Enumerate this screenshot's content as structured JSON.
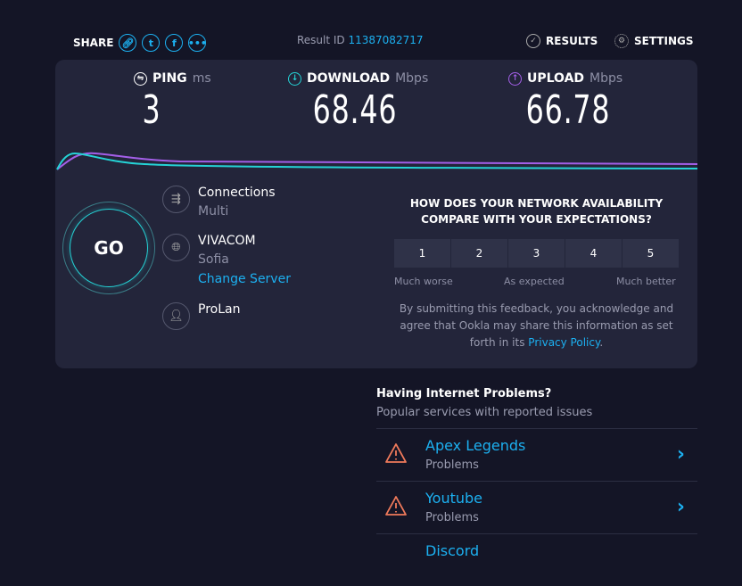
{
  "header": {
    "share_label": "SHARE",
    "share_icons": [
      "link-icon",
      "twitter-icon",
      "facebook-icon",
      "more-icon"
    ],
    "result_id_label": "Result ID",
    "result_id": "11387082717",
    "results_label": "RESULTS",
    "settings_label": "SETTINGS"
  },
  "metrics": {
    "ping": {
      "label": "PING",
      "unit": "ms",
      "value": "3"
    },
    "download": {
      "label": "DOWNLOAD",
      "unit": "Mbps",
      "value": "68.46"
    },
    "upload": {
      "label": "UPLOAD",
      "unit": "Mbps",
      "value": "66.78"
    }
  },
  "colors": {
    "accent": "#1cb0f0",
    "download": "#25d3d6",
    "upload": "#a35fe8",
    "warning": "#f07a5b"
  },
  "go_label": "GO",
  "connection": {
    "connections_label": "Connections",
    "connections_value": "Multi",
    "isp": "VIVACOM",
    "location": "Sofia",
    "change_server": "Change Server",
    "host": "ProLan"
  },
  "feedback": {
    "question": "HOW DOES YOUR NETWORK AVAILABILITY COMPARE WITH YOUR EXPECTATIONS?",
    "scale": [
      "1",
      "2",
      "3",
      "4",
      "5"
    ],
    "low": "Much worse",
    "mid": "As expected",
    "high": "Much better",
    "disclaimer": "By submitting this feedback, you acknowledge and agree that Ookla may share this information as set forth in its",
    "privacy": "Privacy Policy",
    "period": "."
  },
  "problems": {
    "title": "Having Internet Problems?",
    "subtitle": "Popular services with reported issues",
    "items": [
      {
        "name": "Apex Legends",
        "status": "Problems"
      },
      {
        "name": "Youtube",
        "status": "Problems"
      },
      {
        "name": "Discord",
        "status": ""
      }
    ]
  }
}
